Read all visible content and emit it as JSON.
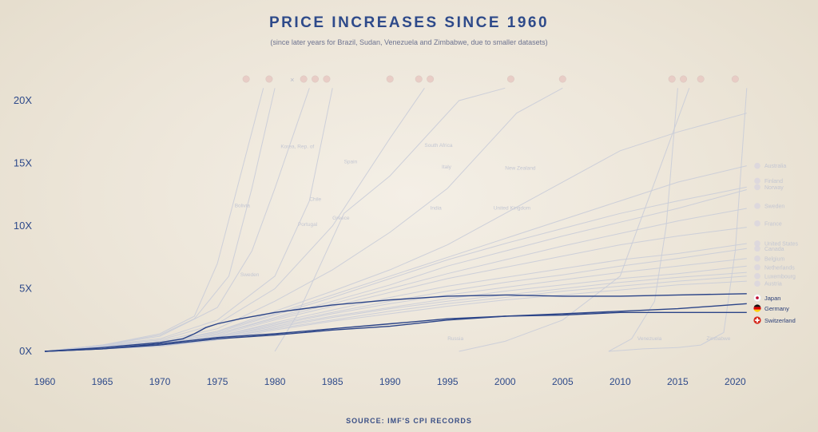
{
  "page": {
    "title": "PRICE INCREASES SINCE 1960",
    "subtitle": "(since later years for Brazil, Sudan, Venezuela and Zimbabwe, due to smaller datasets)",
    "source": "SOURCE: IMF'S CPI RECORDS"
  },
  "chart_data": {
    "type": "line",
    "title": "PRICE INCREASES SINCE 1960",
    "subtitle": "(since later years for Brazil, Sudan, Venezuela and Zimbabwe, due to smaller datasets)",
    "xlabel": "",
    "ylabel": "",
    "xlim": [
      1960,
      2022
    ],
    "ylim": [
      0,
      21
    ],
    "x_ticks": [
      1960,
      1965,
      1970,
      1975,
      1980,
      1985,
      1990,
      1995,
      2000,
      2005,
      2010,
      2015,
      2020
    ],
    "y_ticks": [
      {
        "value": 0,
        "label": "0X"
      },
      {
        "value": 5,
        "label": "5X"
      },
      {
        "value": 10,
        "label": "10X"
      },
      {
        "value": 15,
        "label": "15X"
      },
      {
        "value": 20,
        "label": "20X"
      }
    ],
    "grid": false,
    "colors": {
      "faded": "#c9ccd8",
      "highlight": "#2b4488",
      "axis_text": "#2e4a8a"
    },
    "highlighted_series": [
      {
        "name": "Japan",
        "flag_icon": "japan-flag-icon",
        "x": [
          1960,
          1965,
          1970,
          1972,
          1973,
          1974,
          1975,
          1977,
          1980,
          1985,
          1990,
          1995,
          2000,
          2005,
          2010,
          2015,
          2021
        ],
        "y": [
          0,
          0.3,
          0.7,
          1.0,
          1.4,
          1.9,
          2.2,
          2.6,
          3.1,
          3.7,
          4.1,
          4.4,
          4.5,
          4.4,
          4.4,
          4.5,
          4.6
        ]
      },
      {
        "name": "Germany",
        "flag_icon": "germany-flag-icon",
        "x": [
          1960,
          1965,
          1970,
          1975,
          1980,
          1985,
          1990,
          1995,
          2000,
          2005,
          2010,
          2015,
          2021
        ],
        "y": [
          0,
          0.2,
          0.5,
          1.0,
          1.3,
          1.7,
          2.0,
          2.5,
          2.8,
          3.0,
          3.2,
          3.4,
          3.8
        ]
      },
      {
        "name": "Switzerland",
        "flag_icon": "switzerland-flag-icon",
        "x": [
          1960,
          1965,
          1970,
          1975,
          1980,
          1985,
          1990,
          1995,
          2000,
          2005,
          2010,
          2015,
          2021
        ],
        "y": [
          0,
          0.2,
          0.6,
          1.1,
          1.4,
          1.8,
          2.2,
          2.6,
          2.8,
          2.9,
          3.1,
          3.1,
          3.1
        ]
      }
    ],
    "background_series": [
      {
        "x": [
          1960,
          1965,
          1970,
          1973,
          1975,
          1977,
          1979
        ],
        "y": [
          0,
          0.5,
          1.4,
          2.8,
          7,
          14,
          21
        ]
      },
      {
        "x": [
          1960,
          1965,
          1970,
          1973,
          1976,
          1978,
          1980
        ],
        "y": [
          0,
          0.5,
          1.3,
          2.6,
          6,
          13,
          21
        ]
      },
      {
        "x": [
          1960,
          1965,
          1970,
          1975,
          1978,
          1980,
          1983
        ],
        "y": [
          0,
          0.5,
          1.2,
          3.5,
          8,
          13,
          21
        ]
      },
      {
        "x": [
          1960,
          1970,
          1975,
          1980,
          1983,
          1985
        ],
        "y": [
          0,
          1.0,
          2.5,
          6,
          12,
          21
        ]
      },
      {
        "x": [
          1960,
          1970,
          1975,
          1980,
          1985,
          1990,
          1993
        ],
        "y": [
          0,
          0.9,
          2.2,
          5,
          10,
          17,
          21
        ]
      },
      {
        "x": [
          1960,
          1970,
          1975,
          1980,
          1985,
          1990,
          1995,
          1998,
          2001,
          2005
        ],
        "y": [
          0,
          0.8,
          1.8,
          4,
          6.5,
          9.5,
          13,
          16,
          19,
          21
        ]
      },
      {
        "x": [
          1960,
          1970,
          1975,
          1980,
          1985,
          1990,
          1995,
          2000,
          2005,
          2010,
          2015,
          2021
        ],
        "y": [
          0,
          0.7,
          1.6,
          3.2,
          4.8,
          6.5,
          8.5,
          11,
          13.5,
          16,
          17.5,
          19
        ]
      },
      {
        "x": [
          1960,
          1970,
          1975,
          1980,
          1985,
          1990,
          1995,
          2000,
          2005,
          2010,
          2015,
          2021
        ],
        "y": [
          0,
          0.7,
          1.6,
          3,
          4.5,
          6,
          7.5,
          9,
          10.5,
          12,
          13.5,
          14.8
        ]
      },
      {
        "x": [
          1960,
          1970,
          1975,
          1980,
          1985,
          1990,
          1995,
          2000,
          2005,
          2010,
          2015,
          2021
        ],
        "y": [
          0,
          0.7,
          1.5,
          2.9,
          4.3,
          5.8,
          7.3,
          8.6,
          9.8,
          11,
          12,
          13.1
        ]
      },
      {
        "x": [
          1960,
          1970,
          1975,
          1980,
          1985,
          1990,
          1995,
          2000,
          2005,
          2010,
          2015,
          2021
        ],
        "y": [
          0,
          0.6,
          1.4,
          2.7,
          4,
          5.3,
          6.8,
          8,
          9.2,
          10.3,
          11.4,
          12.9
        ]
      },
      {
        "x": [
          1960,
          1970,
          1975,
          1980,
          1985,
          1990,
          1995,
          2000,
          2005,
          2010,
          2015,
          2021
        ],
        "y": [
          0,
          0.6,
          1.4,
          2.6,
          3.8,
          5,
          6.2,
          7.3,
          8.4,
          9.4,
          10.4,
          11.4
        ]
      },
      {
        "x": [
          1960,
          1970,
          1975,
          1980,
          1985,
          1990,
          1995,
          2000,
          2005,
          2010,
          2015,
          2021
        ],
        "y": [
          0,
          0.6,
          1.3,
          2.5,
          3.6,
          4.7,
          5.8,
          6.7,
          7.6,
          8.5,
          9.2,
          9.9
        ]
      },
      {
        "x": [
          1960,
          1970,
          1975,
          1980,
          1985,
          1990,
          1995,
          2000,
          2005,
          2010,
          2015,
          2021
        ],
        "y": [
          0,
          0.5,
          1.2,
          2.3,
          3.3,
          4.3,
          5.2,
          5.9,
          6.6,
          7.3,
          7.8,
          8.6
        ]
      },
      {
        "x": [
          1960,
          1970,
          1975,
          1980,
          1985,
          1990,
          1995,
          2000,
          2005,
          2010,
          2015,
          2021
        ],
        "y": [
          0,
          0.5,
          1.2,
          2.2,
          3.1,
          4,
          4.8,
          5.5,
          6.1,
          6.8,
          7.4,
          8.2
        ]
      },
      {
        "x": [
          1960,
          1970,
          1975,
          1980,
          1985,
          1990,
          1995,
          2000,
          2005,
          2010,
          2015,
          2021
        ],
        "y": [
          0,
          0.5,
          1.1,
          2.1,
          3,
          3.8,
          4.5,
          5.1,
          5.7,
          6.3,
          6.8,
          7.4
        ]
      },
      {
        "x": [
          1960,
          1970,
          1975,
          1980,
          1985,
          1990,
          1995,
          2000,
          2005,
          2010,
          2015,
          2021
        ],
        "y": [
          0,
          0.5,
          1.1,
          2,
          2.8,
          3.5,
          4.2,
          4.8,
          5.3,
          5.8,
          6.2,
          6.8
        ]
      },
      {
        "x": [
          1960,
          1970,
          1975,
          1980,
          1985,
          1990,
          1995,
          2000,
          2005,
          2010,
          2015,
          2021
        ],
        "y": [
          0,
          0.5,
          1.0,
          1.9,
          2.7,
          3.4,
          4.0,
          4.5,
          5.0,
          5.5,
          5.9,
          6.3
        ]
      },
      {
        "x": [
          1960,
          1970,
          1975,
          1980,
          1985,
          1990,
          1995,
          2000,
          2005,
          2010,
          2015,
          2021
        ],
        "y": [
          0,
          0.4,
          1.0,
          1.8,
          2.5,
          3.2,
          3.8,
          4.3,
          4.8,
          5.2,
          5.6,
          6.0
        ]
      },
      {
        "x": [
          1960,
          1970,
          1975,
          1980,
          1985,
          1990,
          1995,
          2000,
          2005,
          2010,
          2015,
          2021
        ],
        "y": [
          0,
          0.4,
          0.9,
          1.7,
          2.4,
          3.0,
          3.6,
          4.1,
          4.5,
          4.9,
          5.3,
          5.6
        ]
      },
      {
        "x": [
          1980,
          1982,
          1984,
          1986,
          1990,
          1994,
          1996,
          2000
        ],
        "y": [
          0,
          3,
          7,
          11,
          14,
          18,
          20,
          21
        ]
      },
      {
        "x": [
          1996,
          2000,
          2005,
          2010,
          2012,
          2014,
          2016
        ],
        "y": [
          0,
          0.8,
          2.5,
          6,
          11,
          16,
          21
        ]
      },
      {
        "x": [
          2009,
          2011,
          2013,
          2014,
          2015
        ],
        "y": [
          0,
          1,
          4,
          10,
          21
        ]
      },
      {
        "x": [
          2009,
          2012,
          2015,
          2017,
          2019,
          2020,
          2021
        ],
        "y": [
          0,
          0.2,
          0.3,
          0.5,
          1.5,
          8,
          21
        ]
      }
    ],
    "background_labels": [
      {
        "text": "Bolivia",
        "x": 1976.5,
        "y": 11.5
      },
      {
        "text": "Korea, Rep. of",
        "x": 1980.5,
        "y": 16.2
      },
      {
        "text": "Chile",
        "x": 1983,
        "y": 12
      },
      {
        "text": "Portugal",
        "x": 1982,
        "y": 10
      },
      {
        "text": "Greece",
        "x": 1985,
        "y": 10.5
      },
      {
        "text": "Spain",
        "x": 1986,
        "y": 15
      },
      {
        "text": "Sweden",
        "x": 1977,
        "y": 6
      },
      {
        "text": "South Africa",
        "x": 1993,
        "y": 16.3
      },
      {
        "text": "Italy",
        "x": 1994.5,
        "y": 14.6
      },
      {
        "text": "India",
        "x": 1993.5,
        "y": 11.3
      },
      {
        "text": "United Kingdom",
        "x": 1999,
        "y": 11.3
      },
      {
        "text": "New Zealand",
        "x": 2000,
        "y": 14.5
      },
      {
        "text": "Russia",
        "x": 1995,
        "y": 0.9
      },
      {
        "text": "Venezuela",
        "x": 2011.5,
        "y": 0.9
      },
      {
        "text": "Zimbabwe",
        "x": 2017.5,
        "y": 0.9
      }
    ],
    "right_labels": [
      {
        "text": "Australia",
        "y": 14.8
      },
      {
        "text": "Finland",
        "y": 13.6
      },
      {
        "text": "Norway",
        "y": 13.1
      },
      {
        "text": "Sweden",
        "y": 11.6
      },
      {
        "text": "France",
        "y": 10.2
      },
      {
        "text": "United States",
        "y": 8.6
      },
      {
        "text": "Canada",
        "y": 8.2
      },
      {
        "text": "Belgium",
        "y": 7.4
      },
      {
        "text": "Netherlands",
        "y": 6.7
      },
      {
        "text": "Luxembourg",
        "y": 6.0
      },
      {
        "text": "Austria",
        "y": 5.4
      }
    ],
    "top_flags": [
      {
        "icon": "flag-icon",
        "x": 1977.5
      },
      {
        "icon": "flag-icon",
        "x": 1979.5
      },
      {
        "icon": "close-icon",
        "x": 1981.5
      },
      {
        "icon": "flag-icon",
        "x": 1982.5
      },
      {
        "icon": "flag-icon",
        "x": 1983.5
      },
      {
        "icon": "flag-icon",
        "x": 1984.5
      },
      {
        "icon": "flag-icon",
        "x": 1990
      },
      {
        "icon": "flag-icon",
        "x": 1992.5
      },
      {
        "icon": "flag-icon",
        "x": 1993.5
      },
      {
        "icon": "flag-icon",
        "x": 2000.5
      },
      {
        "icon": "flag-icon",
        "x": 2005
      },
      {
        "icon": "flag-icon",
        "x": 2014.5
      },
      {
        "icon": "flag-icon",
        "x": 2015.5
      },
      {
        "icon": "flag-icon",
        "x": 2017
      },
      {
        "icon": "flag-icon",
        "x": 2020
      }
    ]
  }
}
